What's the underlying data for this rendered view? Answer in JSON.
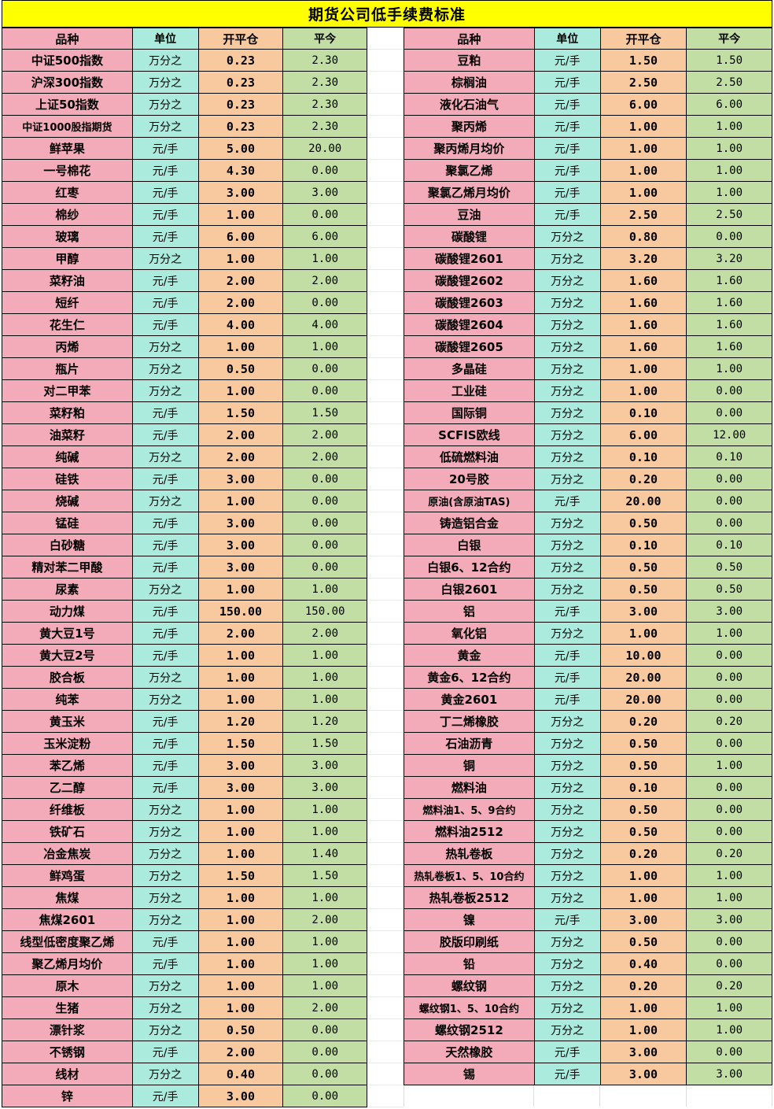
{
  "title": "期货公司低手续费标准",
  "columns": [
    "品种",
    "单位",
    "开平仓",
    "平今"
  ],
  "colors": {
    "title_bg": "#FFFF00",
    "variety_bg": "#F4ABB9",
    "unit_bg": "#AAEBDD",
    "open_close_bg": "#F8C89F",
    "close_today_bg": "#C2DEA5",
    "border": "#000000"
  },
  "left_table": {
    "rows": [
      [
        "中证500指数",
        "万分之",
        "0.23",
        "2.30"
      ],
      [
        "沪深300指数",
        "万分之",
        "0.23",
        "2.30"
      ],
      [
        "上证50指数",
        "万分之",
        "0.23",
        "2.30"
      ],
      [
        "中证1000股指期货",
        "万分之",
        "0.23",
        "2.30"
      ],
      [
        "鲜苹果",
        "元/手",
        "5.00",
        "20.00"
      ],
      [
        "一号棉花",
        "元/手",
        "4.30",
        "0.00"
      ],
      [
        "红枣",
        "元/手",
        "3.00",
        "3.00"
      ],
      [
        "棉纱",
        "元/手",
        "1.00",
        "0.00"
      ],
      [
        "玻璃",
        "元/手",
        "6.00",
        "6.00"
      ],
      [
        "甲醇",
        "万分之",
        "1.00",
        "1.00"
      ],
      [
        "菜籽油",
        "元/手",
        "2.00",
        "2.00"
      ],
      [
        "短纤",
        "元/手",
        "2.00",
        "0.00"
      ],
      [
        "花生仁",
        "元/手",
        "4.00",
        "4.00"
      ],
      [
        "丙烯",
        "万分之",
        "1.00",
        "1.00"
      ],
      [
        "瓶片",
        "万分之",
        "0.50",
        "0.00"
      ],
      [
        "对二甲苯",
        "万分之",
        "1.00",
        "0.00"
      ],
      [
        "菜籽粕",
        "元/手",
        "1.50",
        "1.50"
      ],
      [
        "油菜籽",
        "元/手",
        "2.00",
        "2.00"
      ],
      [
        "纯碱",
        "万分之",
        "2.00",
        "2.00"
      ],
      [
        "硅铁",
        "元/手",
        "3.00",
        "0.00"
      ],
      [
        "烧碱",
        "万分之",
        "1.00",
        "0.00"
      ],
      [
        "锰硅",
        "元/手",
        "3.00",
        "0.00"
      ],
      [
        "白砂糖",
        "元/手",
        "3.00",
        "0.00"
      ],
      [
        "精对苯二甲酸",
        "元/手",
        "3.00",
        "0.00"
      ],
      [
        "尿素",
        "万分之",
        "1.00",
        "1.00"
      ],
      [
        "动力煤",
        "元/手",
        "150.00",
        "150.00"
      ],
      [
        "黄大豆1号",
        "元/手",
        "2.00",
        "2.00"
      ],
      [
        "黄大豆2号",
        "元/手",
        "1.00",
        "1.00"
      ],
      [
        "胶合板",
        "万分之",
        "1.00",
        "1.00"
      ],
      [
        "纯苯",
        "万分之",
        "1.00",
        "1.00"
      ],
      [
        "黄玉米",
        "元/手",
        "1.20",
        "1.20"
      ],
      [
        "玉米淀粉",
        "元/手",
        "1.50",
        "1.50"
      ],
      [
        "苯乙烯",
        "元/手",
        "3.00",
        "3.00"
      ],
      [
        "乙二醇",
        "元/手",
        "3.00",
        "3.00"
      ],
      [
        "纤维板",
        "万分之",
        "1.00",
        "1.00"
      ],
      [
        "铁矿石",
        "万分之",
        "1.00",
        "1.00"
      ],
      [
        "冶金焦炭",
        "万分之",
        "1.00",
        "1.40"
      ],
      [
        "鲜鸡蛋",
        "万分之",
        "1.50",
        "1.50"
      ],
      [
        "焦煤",
        "万分之",
        "1.00",
        "1.00"
      ],
      [
        "焦煤2601",
        "万分之",
        "1.00",
        "2.00"
      ],
      [
        "线型低密度聚乙烯",
        "元/手",
        "1.00",
        "1.00"
      ],
      [
        "聚乙烯月均价",
        "元/手",
        "1.00",
        "1.00"
      ],
      [
        "原木",
        "万分之",
        "1.00",
        "1.00"
      ],
      [
        "生猪",
        "万分之",
        "1.00",
        "2.00"
      ],
      [
        "漂针浆",
        "万分之",
        "0.50",
        "0.00"
      ],
      [
        "不锈钢",
        "元/手",
        "2.00",
        "0.00"
      ],
      [
        "线材",
        "万分之",
        "0.40",
        "0.00"
      ],
      [
        "锌",
        "元/手",
        "3.00",
        "0.00"
      ]
    ]
  },
  "right_table": {
    "rows": [
      [
        "豆粕",
        "元/手",
        "1.50",
        "1.50"
      ],
      [
        "棕榈油",
        "元/手",
        "2.50",
        "2.50"
      ],
      [
        "液化石油气",
        "元/手",
        "6.00",
        "6.00"
      ],
      [
        "聚丙烯",
        "元/手",
        "1.00",
        "1.00"
      ],
      [
        "聚丙烯月均价",
        "元/手",
        "1.00",
        "1.00"
      ],
      [
        "聚氯乙烯",
        "元/手",
        "1.00",
        "1.00"
      ],
      [
        "聚氯乙烯月均价",
        "元/手",
        "1.00",
        "1.00"
      ],
      [
        "豆油",
        "元/手",
        "2.50",
        "2.50"
      ],
      [
        "碳酸锂",
        "万分之",
        "0.80",
        "0.00"
      ],
      [
        "碳酸锂2601",
        "万分之",
        "3.20",
        "3.20"
      ],
      [
        "碳酸锂2602",
        "万分之",
        "1.60",
        "1.60"
      ],
      [
        "碳酸锂2603",
        "万分之",
        "1.60",
        "1.60"
      ],
      [
        "碳酸锂2604",
        "万分之",
        "1.60",
        "1.60"
      ],
      [
        "碳酸锂2605",
        "万分之",
        "1.60",
        "1.60"
      ],
      [
        "多晶硅",
        "万分之",
        "1.00",
        "1.00"
      ],
      [
        "工业硅",
        "万分之",
        "1.00",
        "0.00"
      ],
      [
        "国际铜",
        "万分之",
        "0.10",
        "0.00"
      ],
      [
        "SCFIS欧线",
        "万分之",
        "6.00",
        "12.00"
      ],
      [
        "低硫燃料油",
        "万分之",
        "0.10",
        "0.10"
      ],
      [
        "20号胶",
        "万分之",
        "0.20",
        "0.00"
      ],
      [
        "原油(含原油TAS)",
        "元/手",
        "20.00",
        "0.00"
      ],
      [
        "铸造铝合金",
        "万分之",
        "0.50",
        "0.00"
      ],
      [
        "白银",
        "万分之",
        "0.10",
        "0.10"
      ],
      [
        "白银6、12合约",
        "万分之",
        "0.50",
        "0.50"
      ],
      [
        "白银2601",
        "万分之",
        "0.50",
        "0.50"
      ],
      [
        "铝",
        "元/手",
        "3.00",
        "3.00"
      ],
      [
        "氧化铝",
        "万分之",
        "1.00",
        "1.00"
      ],
      [
        "黄金",
        "元/手",
        "10.00",
        "0.00"
      ],
      [
        "黄金6、12合约",
        "元/手",
        "20.00",
        "0.00"
      ],
      [
        "黄金2601",
        "元/手",
        "20.00",
        "0.00"
      ],
      [
        "丁二烯橡胶",
        "万分之",
        "0.20",
        "0.20"
      ],
      [
        "石油沥青",
        "万分之",
        "0.50",
        "0.00"
      ],
      [
        "铜",
        "万分之",
        "0.50",
        "1.00"
      ],
      [
        "燃料油",
        "万分之",
        "0.10",
        "0.00"
      ],
      [
        "燃料油1、5、9合约",
        "万分之",
        "0.50",
        "0.00"
      ],
      [
        "燃料油2512",
        "万分之",
        "0.50",
        "0.00"
      ],
      [
        "热轧卷板",
        "万分之",
        "0.20",
        "0.20"
      ],
      [
        "热轧卷板1、5、10合约",
        "万分之",
        "1.00",
        "1.00"
      ],
      [
        "热轧卷板2512",
        "万分之",
        "1.00",
        "1.00"
      ],
      [
        "镍",
        "元/手",
        "3.00",
        "3.00"
      ],
      [
        "胶版印刷纸",
        "万分之",
        "0.50",
        "0.00"
      ],
      [
        "铅",
        "万分之",
        "0.40",
        "0.00"
      ],
      [
        "螺纹钢",
        "万分之",
        "0.20",
        "0.20"
      ],
      [
        "螺纹钢1、5、10合约",
        "万分之",
        "1.00",
        "1.00"
      ],
      [
        "螺纹钢2512",
        "万分之",
        "1.00",
        "1.00"
      ],
      [
        "天然橡胶",
        "元/手",
        "3.00",
        "0.00"
      ],
      [
        "锡",
        "元/手",
        "3.00",
        "3.00"
      ]
    ]
  }
}
